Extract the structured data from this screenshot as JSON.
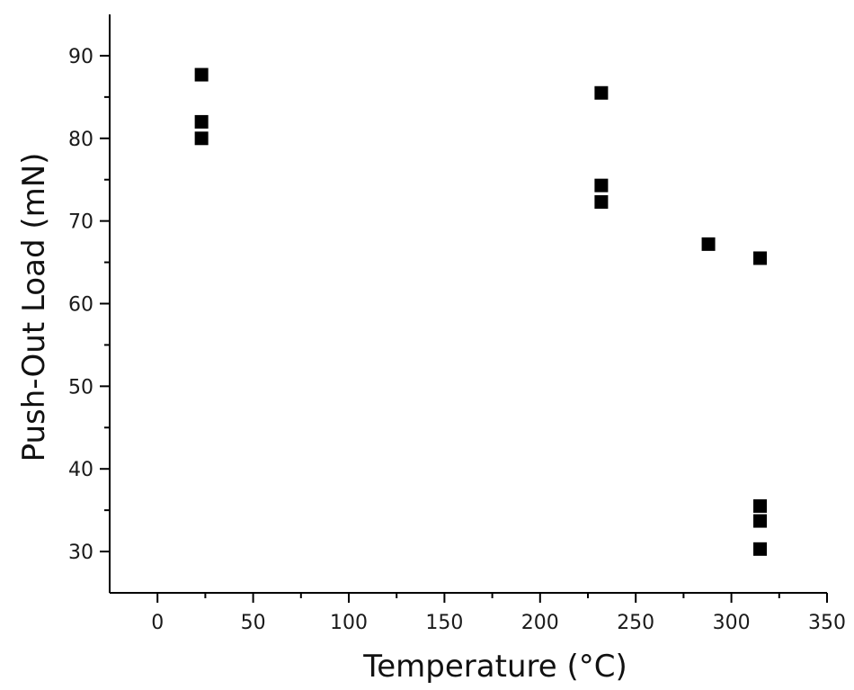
{
  "chart_data": {
    "type": "scatter",
    "title": "",
    "xlabel": "Temperature (°C)",
    "ylabel": "Push-Out Load (mN)",
    "xlim": [
      -25,
      350
    ],
    "ylim": [
      25,
      95
    ],
    "x_ticks": [
      0,
      50,
      100,
      150,
      200,
      250,
      300,
      350
    ],
    "y_ticks": [
      30,
      40,
      50,
      60,
      70,
      80,
      90
    ],
    "grid": false,
    "legend": "none",
    "marker": "square",
    "marker_color": "#000000",
    "series": [
      {
        "name": "",
        "points": [
          {
            "x": 23,
            "y": 87.7
          },
          {
            "x": 23,
            "y": 82.0
          },
          {
            "x": 23,
            "y": 80.0
          },
          {
            "x": 232,
            "y": 85.5
          },
          {
            "x": 232,
            "y": 74.3
          },
          {
            "x": 232,
            "y": 72.3
          },
          {
            "x": 288,
            "y": 67.2
          },
          {
            "x": 315,
            "y": 65.5
          },
          {
            "x": 315,
            "y": 35.5
          },
          {
            "x": 315,
            "y": 33.7
          },
          {
            "x": 315,
            "y": 30.3
          }
        ]
      }
    ]
  }
}
